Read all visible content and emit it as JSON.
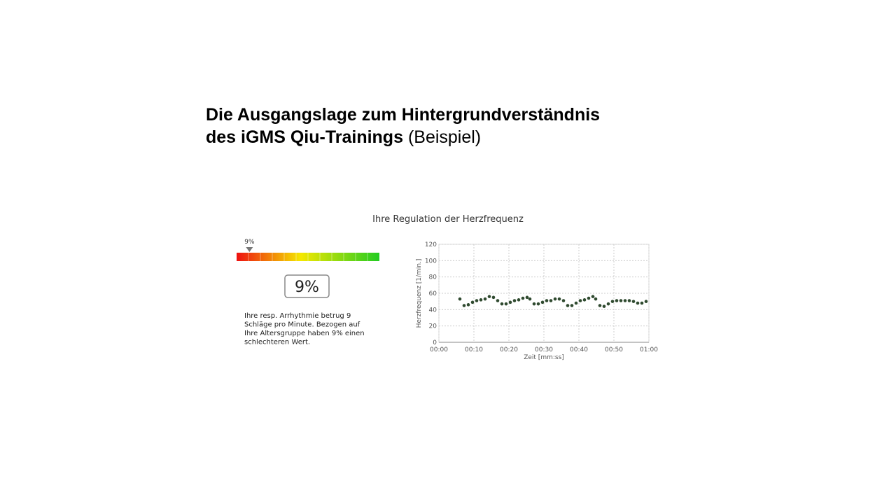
{
  "slide": {
    "title_lines": [
      "Die Ausgangslage zum Hintergrundverständnis",
      "des iGMS Qiu-Trainings"
    ],
    "title_suffix": "(Beispiel)"
  },
  "gauge": {
    "value": 9,
    "marker_label": "9%",
    "display": "9%",
    "lim": [
      0,
      100
    ],
    "description": [
      "Ihre resp. Arrhythmie betrug 9",
      "Schläge pro Minute. Bezogen auf",
      "Ihre Altersgruppe haben 9% einen",
      "schlechteren Wert."
    ]
  },
  "chart_data": {
    "type": "scatter",
    "title": "Ihre Regulation der Herzfrequenz",
    "x_label": "Zeit [mm:ss]",
    "y_label": "Herzfrequenz [1/min.]",
    "xlim": [
      0,
      60
    ],
    "ylim": [
      0,
      120
    ],
    "grid": true,
    "color": "#2f4a2f",
    "xticks": [
      {
        "value": 0,
        "label": "00:00"
      },
      {
        "value": 10,
        "label": "00:10"
      },
      {
        "value": 20,
        "label": "00:20"
      },
      {
        "value": 30,
        "label": "00:30"
      },
      {
        "value": 40,
        "label": "00:40"
      },
      {
        "value": 50,
        "label": "00:50"
      },
      {
        "value": 60,
        "label": "01:00"
      }
    ],
    "yticks": [
      0,
      20,
      40,
      60,
      80,
      100,
      120
    ],
    "x": [
      6,
      7.2,
      8.4,
      9.6,
      10.8,
      12,
      13.2,
      14.4,
      15.6,
      16.8,
      18,
      19.2,
      20.4,
      21.6,
      22.8,
      24,
      25.2,
      26,
      27.2,
      28.4,
      29.6,
      30.8,
      32,
      33.2,
      34.4,
      35.6,
      36.8,
      38,
      39.2,
      40.4,
      41.6,
      42.8,
      44,
      44.8,
      46,
      47.2,
      48.4,
      49.6,
      50.8,
      52,
      53.2,
      54.4,
      55.6,
      56.8,
      58,
      59.2
    ],
    "values": [
      53,
      45,
      46,
      49,
      51,
      52,
      53,
      56,
      55,
      51,
      47,
      47,
      49,
      51,
      52,
      54,
      55,
      53,
      47,
      47,
      49,
      51,
      51,
      53,
      53,
      51,
      45,
      45,
      48,
      51,
      52,
      54,
      56,
      53,
      45,
      44,
      47,
      50,
      51,
      51,
      51,
      51,
      50,
      48,
      48,
      50
    ]
  }
}
